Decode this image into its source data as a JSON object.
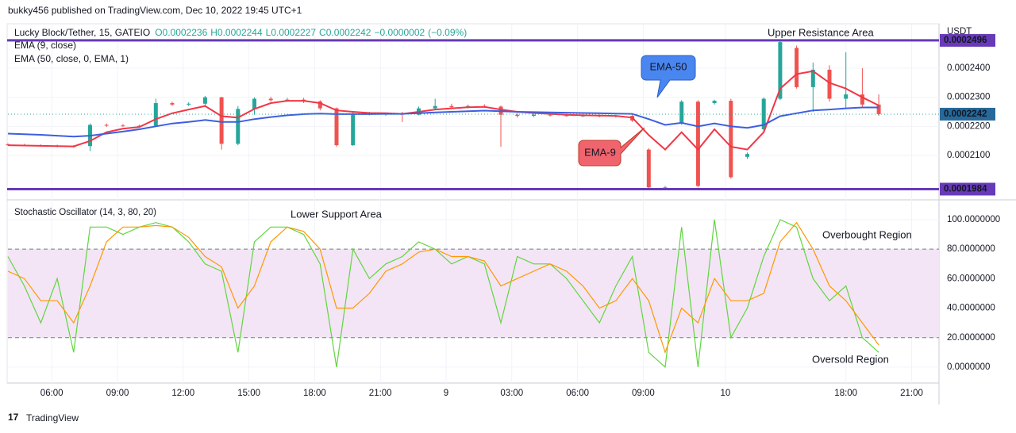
{
  "header": {
    "published": "bukky456 published on TradingView.com, Dec 10, 2022 19:45 UTC+1"
  },
  "chart_data": [
    {
      "type": "candlestick",
      "title": "Lucky Block/Tether, 15, GATEIO",
      "ohlc_legend": [
        {
          "value": 0.0002236,
          "label": "O0.0002236"
        },
        {
          "value": 0.0002244,
          "label": "H0.0002244"
        },
        {
          "value": 0.0002227,
          "label": "L0.0002227"
        },
        {
          "value": 0.0002242,
          "label": "C0.0002242"
        }
      ],
      "change": {
        "value": -2e-07,
        "label": "−0.0000002"
      },
      "change_percent": {
        "value": -0.09,
        "label": "(−0.09%)"
      },
      "currency": "USDT",
      "x": [
        0,
        3,
        6,
        9,
        12,
        15,
        18,
        21,
        24,
        27,
        30,
        33,
        36,
        39,
        42,
        45,
        48,
        51,
        54,
        57,
        60,
        63,
        66,
        69,
        72,
        75,
        78,
        81,
        84,
        87,
        90,
        93,
        96,
        99,
        102,
        105,
        108,
        111,
        114,
        117,
        120,
        123,
        126,
        129,
        132,
        135,
        138,
        141,
        144,
        147,
        150,
        153,
        156,
        159
      ],
      "open": [
        0.0002138,
        0.0002136,
        0.0002134,
        0.0002133,
        0.000213,
        0.0002132,
        0.0002205,
        0.0002203,
        0.0002201,
        0.0002202,
        0.000228,
        0.0002275,
        0.0002278,
        0.00023,
        0.000214,
        0.000226,
        0.0002295,
        0.000229,
        0.0002292,
        0.0002286,
        0.0002262,
        0.0002135,
        0.0002245,
        0.0002242,
        0.0002244,
        0.000224,
        0.0002262,
        0.000227,
        0.0002266,
        0.000227,
        0.0002268,
        0.000224,
        0.0002236,
        0.000224,
        0.0002238,
        0.0002236,
        0.0002237,
        0.0002235,
        0.0002236,
        0.000212,
        0.000199,
        0.000221,
        0.0002285,
        0.000228,
        0.0002288,
        0.0002095,
        0.000219,
        0.0002295,
        0.000247,
        0.0002335,
        0.0002395,
        0.0002295,
        0.000231,
        0.0002275
      ],
      "high": [
        0.0002142,
        0.000214,
        0.0002138,
        0.0002137,
        0.0002135,
        0.000221,
        0.000221,
        0.0002208,
        0.0002206,
        0.0002295,
        0.0002285,
        0.0002283,
        0.0002305,
        0.0002302,
        0.000227,
        0.00023,
        0.0002302,
        0.0002298,
        0.0002298,
        0.000229,
        0.0002265,
        0.000225,
        0.000225,
        0.0002248,
        0.000225,
        0.0002268,
        0.0002295,
        0.0002278,
        0.0002275,
        0.0002276,
        0.0002272,
        0.0002246,
        0.0002245,
        0.0002244,
        0.0002243,
        0.0002242,
        0.0002241,
        0.000224,
        0.000224,
        0.0002125,
        0.0001995,
        0.000229,
        0.000229,
        0.0002292,
        0.0002295,
        0.000211,
        0.00023,
        0.00025,
        0.0002478,
        0.000242,
        0.000241,
        0.0002455,
        0.00024,
        0.000231
      ],
      "low": [
        0.0002133,
        0.0002132,
        0.000213,
        0.0002128,
        0.0002127,
        0.0002115,
        0.0002198,
        0.0002199,
        0.0002197,
        0.00022,
        0.000227,
        0.000227,
        0.0002272,
        0.000212,
        0.0002135,
        0.000224,
        0.0002285,
        0.0002285,
        0.000228,
        0.0002255,
        0.000213,
        0.0002133,
        0.0002238,
        0.0002236,
        0.0002215,
        0.0002238,
        0.0002258,
        0.0002262,
        0.0002262,
        0.0002264,
        0.000213,
        0.000223,
        0.0002232,
        0.0002234,
        0.0002233,
        0.0002232,
        0.0002231,
        0.000223,
        0.0002215,
        0.0001985,
        0.0001984,
        0.0002205,
        0.000199,
        0.0002275,
        0.000202,
        0.0002088,
        0.0002185,
        0.000229,
        0.000233,
        0.000225,
        0.0002285,
        0.000226,
        0.0002265,
        0.0002236
      ],
      "close": [
        0.0002136,
        0.0002134,
        0.0002133,
        0.000213,
        0.0002132,
        0.0002205,
        0.0002203,
        0.0002201,
        0.0002202,
        0.000228,
        0.0002275,
        0.0002278,
        0.00023,
        0.000214,
        0.000226,
        0.0002295,
        0.000229,
        0.0002292,
        0.0002286,
        0.0002262,
        0.0002135,
        0.0002245,
        0.0002242,
        0.0002244,
        0.000224,
        0.0002262,
        0.000227,
        0.0002266,
        0.000227,
        0.0002268,
        0.000224,
        0.0002236,
        0.000224,
        0.0002238,
        0.0002236,
        0.0002237,
        0.0002235,
        0.0002236,
        0.000222,
        0.000199,
        0.0001988,
        0.0002285,
        0.0001995,
        0.0002288,
        0.0002025,
        0.0002105,
        0.0002295,
        0.000249,
        0.0002335,
        0.0002395,
        0.0002295,
        0.000231,
        0.0002275,
        0.0002242
      ],
      "up_color": "#26a69a",
      "down_color": "#ef5350",
      "series": [
        {
          "name": "EMA (9, close)",
          "color": "#f23645",
          "values": [
            0.0002135,
            0.0002134,
            0.0002133,
            0.0002132,
            0.0002131,
            0.000215,
            0.000218,
            0.0002192,
            0.0002198,
            0.0002225,
            0.0002245,
            0.0002258,
            0.000227,
            0.0002235,
            0.000223,
            0.000226,
            0.000228,
            0.0002288,
            0.0002288,
            0.000228,
            0.0002255,
            0.000225,
            0.0002246,
            0.0002245,
            0.0002243,
            0.000225,
            0.0002258,
            0.0002262,
            0.0002266,
            0.0002267,
            0.0002258,
            0.000225,
            0.0002246,
            0.0002243,
            0.000224,
            0.0002238,
            0.0002237,
            0.0002236,
            0.000223,
            0.000217,
            0.000212,
            0.000218,
            0.000212,
            0.000219,
            0.000213,
            0.000212,
            0.000218,
            0.000233,
            0.000238,
            0.000239,
            0.000235,
            0.000233,
            0.00023,
            0.0002272
          ]
        },
        {
          "name": "EMA (50, close, 0, EMA, 1)",
          "color": "#3d5ee1",
          "values": [
            0.0002175,
            0.0002173,
            0.0002171,
            0.0002168,
            0.0002165,
            0.0002168,
            0.0002175,
            0.0002182,
            0.000219,
            0.00022,
            0.000221,
            0.0002215,
            0.0002222,
            0.0002215,
            0.0002215,
            0.0002225,
            0.0002232,
            0.0002238,
            0.0002242,
            0.0002244,
            0.0002242,
            0.0002242,
            0.0002242,
            0.0002243,
            0.0002243,
            0.0002245,
            0.0002248,
            0.000225,
            0.0002252,
            0.0002254,
            0.0002252,
            0.000225,
            0.0002249,
            0.0002248,
            0.0002247,
            0.0002246,
            0.0002245,
            0.0002244,
            0.0002243,
            0.0002225,
            0.0002205,
            0.0002212,
            0.00022,
            0.000221,
            0.00022,
            0.0002195,
            0.0002205,
            0.0002235,
            0.0002245,
            0.0002255,
            0.0002258,
            0.0002262,
            0.0002265,
            0.0002265
          ]
        }
      ],
      "xlim": [
        0,
        170
      ],
      "xticks": [
        {
          "value": 8,
          "label": "06:00"
        },
        {
          "value": 20,
          "label": "09:00"
        },
        {
          "value": 32,
          "label": "12:00"
        },
        {
          "value": 44,
          "label": "15:00"
        },
        {
          "value": 56,
          "label": "18:00"
        },
        {
          "value": 68,
          "label": "21:00"
        },
        {
          "value": 80,
          "label": "9"
        },
        {
          "value": 92,
          "label": "03:00"
        },
        {
          "value": 104,
          "label": "06:00"
        },
        {
          "value": 116,
          "label": "09:00"
        },
        {
          "value": 131,
          "label": "10"
        },
        {
          "value": 153,
          "label": "18:00"
        },
        {
          "value": 165,
          "label": "21:00"
        }
      ],
      "ylim": [
        0.0001958,
        0.0002553
      ],
      "yticks": [
        {
          "value": 0.00024,
          "label": "0.0002400"
        },
        {
          "value": 0.00023,
          "label": "0.0002300"
        },
        {
          "value": 0.00022,
          "label": "0.0002200"
        },
        {
          "value": 0.00021,
          "label": "0.0002100"
        }
      ],
      "levels": [
        {
          "value": 0.0002496,
          "label": "0.0002496",
          "color": "#673ab7"
        },
        {
          "value": 0.0001984,
          "label": "0.0001984",
          "color": "#673ab7"
        }
      ],
      "last_price": {
        "value": 0.0002242,
        "label": "0.0002242"
      },
      "annotations": {
        "upper": "Upper Resistance Area",
        "ema50": "EMA-50",
        "ema9": "EMA-9"
      }
    },
    {
      "type": "line",
      "title": "Stochastic Oscillator (14, 3, 80, 20)",
      "x": [
        0,
        3,
        6,
        9,
        12,
        15,
        18,
        21,
        24,
        27,
        30,
        33,
        36,
        39,
        42,
        45,
        48,
        51,
        54,
        57,
        60,
        63,
        66,
        69,
        72,
        75,
        78,
        81,
        84,
        87,
        90,
        93,
        96,
        99,
        102,
        105,
        108,
        111,
        114,
        117,
        120,
        123,
        126,
        129,
        132,
        135,
        138,
        141,
        144,
        147,
        150,
        153,
        156,
        159
      ],
      "series": [
        {
          "color": "#5fd63e",
          "values": [
            75,
            55,
            30,
            60,
            10,
            95,
            95,
            90,
            95,
            98,
            95,
            85,
            70,
            65,
            10,
            85,
            95,
            95,
            90,
            70,
            0,
            80,
            60,
            70,
            75,
            85,
            80,
            70,
            75,
            70,
            30,
            75,
            70,
            70,
            60,
            45,
            30,
            55,
            75,
            10,
            0,
            95,
            0,
            100,
            20,
            40,
            75,
            100,
            95,
            60,
            45,
            55,
            20,
            10
          ]
        },
        {
          "color": "#ff9800",
          "values": [
            65,
            60,
            45,
            45,
            30,
            55,
            85,
            95,
            95,
            96,
            95,
            88,
            75,
            68,
            40,
            55,
            85,
            95,
            92,
            80,
            40,
            40,
            50,
            65,
            70,
            78,
            80,
            75,
            75,
            72,
            55,
            60,
            65,
            70,
            65,
            55,
            40,
            45,
            60,
            45,
            10,
            40,
            30,
            60,
            45,
            45,
            50,
            85,
            98,
            80,
            55,
            45,
            30,
            15
          ]
        }
      ],
      "xlim": [
        0,
        170
      ],
      "ylim": [
        -10.8,
        110.2
      ],
      "yticks": [
        {
          "value": 100,
          "label": "100.0000000"
        },
        {
          "value": 80,
          "label": "80.0000000"
        },
        {
          "value": 60,
          "label": "60.0000000"
        },
        {
          "value": 40,
          "label": "40.0000000"
        },
        {
          "value": 20,
          "label": "20.0000000"
        },
        {
          "value": 0,
          "label": "0.0000000"
        }
      ],
      "bands": [
        80,
        20
      ],
      "annotations": {
        "lower": "Lower Support Area",
        "overbought": "Overbought Region",
        "oversold": "Oversold Region"
      }
    }
  ],
  "footer": {
    "brand": "TradingView"
  }
}
